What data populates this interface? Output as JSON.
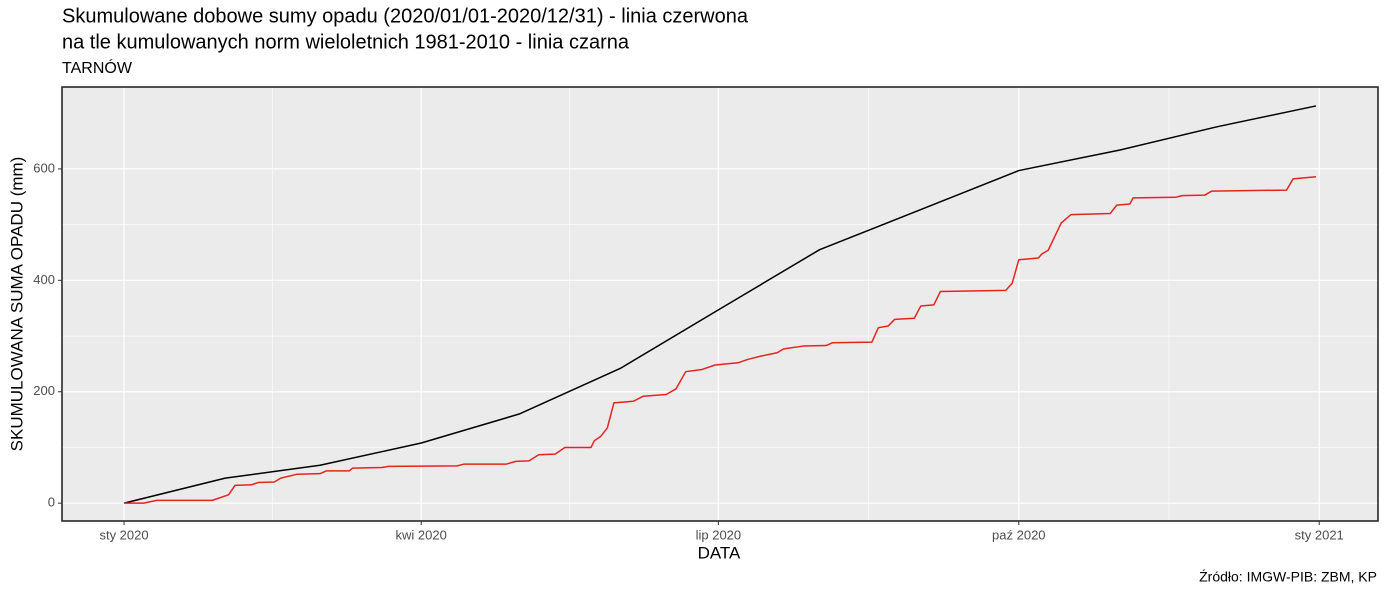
{
  "chart_data": {
    "type": "line",
    "title": [
      "Skumulowane dobowe sumy opadu (2020/01/01-2020/12/31) - linia czerwona",
      "na tle kumulowanych norm wieloletnich 1981-2010 - linia czarna"
    ],
    "subtitle": "TARNÓW",
    "x_label": "DATA",
    "y_label": "SKUMULOWANA SUMA OPADU (mm)",
    "caption": "Źródło: IMGW-PIB: ZBM, KP",
    "xlim": [
      "2019-12-13",
      "2021-01-19"
    ],
    "xticks": [
      {
        "value": "2020-01-01",
        "label": "sty 2020"
      },
      {
        "value": "2020-04-01",
        "label": "kwi 2020"
      },
      {
        "value": "2020-07-01",
        "label": "lip 2020"
      },
      {
        "value": "2020-10-01",
        "label": "paź 2020"
      },
      {
        "value": "2021-01-01",
        "label": "sty 2021"
      }
    ],
    "ylim": [
      -32,
      747
    ],
    "yticks": [
      0,
      200,
      400,
      600
    ],
    "grid": true,
    "series": [
      {
        "name": "norma 1981-2010",
        "color": "#000000",
        "x": [
          "2020-01-01",
          "2020-02-01",
          "2020-03-01",
          "2020-04-01",
          "2020-05-01",
          "2020-06-01",
          "2020-07-01",
          "2020-08-01",
          "2020-09-01",
          "2020-10-01",
          "2020-11-01",
          "2020-12-01",
          "2020-12-31"
        ],
        "values": [
          0,
          45,
          68,
          108,
          160,
          242,
          347,
          455,
          527,
          597,
          634,
          676,
          713
        ]
      },
      {
        "name": "2020",
        "color": "#e8231e",
        "x": [
          "2020-01-01",
          "2020-01-07",
          "2020-01-11",
          "2020-01-28",
          "2020-02-02",
          "2020-02-04",
          "2020-02-09",
          "2020-02-11",
          "2020-02-16",
          "2020-02-18",
          "2020-02-23",
          "2020-03-01",
          "2020-03-03",
          "2020-03-10",
          "2020-03-11",
          "2020-03-20",
          "2020-03-22",
          "2020-04-12",
          "2020-04-14",
          "2020-04-27",
          "2020-04-30",
          "2020-05-04",
          "2020-05-07",
          "2020-05-12",
          "2020-05-15",
          "2020-05-23",
          "2020-05-24",
          "2020-05-26",
          "2020-05-28",
          "2020-05-30",
          "2020-06-05",
          "2020-06-08",
          "2020-06-15",
          "2020-06-18",
          "2020-06-21",
          "2020-06-26",
          "2020-06-30",
          "2020-07-07",
          "2020-07-10",
          "2020-07-14",
          "2020-07-19",
          "2020-07-21",
          "2020-07-27",
          "2020-08-03",
          "2020-08-05",
          "2020-08-17",
          "2020-08-19",
          "2020-08-22",
          "2020-08-24",
          "2020-08-30",
          "2020-09-01",
          "2020-09-05",
          "2020-09-07",
          "2020-09-27",
          "2020-09-29",
          "2020-10-01",
          "2020-10-07",
          "2020-10-08",
          "2020-10-10",
          "2020-10-14",
          "2020-10-17",
          "2020-10-29",
          "2020-10-31",
          "2020-11-04",
          "2020-11-05",
          "2020-11-18",
          "2020-11-20",
          "2020-11-27",
          "2020-11-29",
          "2020-12-22",
          "2020-12-24",
          "2020-12-31"
        ],
        "values": [
          0,
          0,
          5,
          5,
          15,
          32,
          33,
          37,
          38,
          45,
          52,
          53,
          58,
          58,
          63,
          64,
          66,
          67,
          70,
          70,
          75,
          76,
          87,
          88,
          100,
          100,
          112,
          120,
          135,
          180,
          183,
          192,
          195,
          205,
          236,
          240,
          248,
          252,
          258,
          264,
          270,
          277,
          282,
          283,
          288,
          289,
          315,
          318,
          330,
          332,
          354,
          356,
          380,
          382,
          395,
          437,
          440,
          447,
          454,
          503,
          518,
          520,
          535,
          537,
          548,
          549,
          552,
          553,
          560,
          562,
          582,
          586
        ]
      }
    ]
  }
}
